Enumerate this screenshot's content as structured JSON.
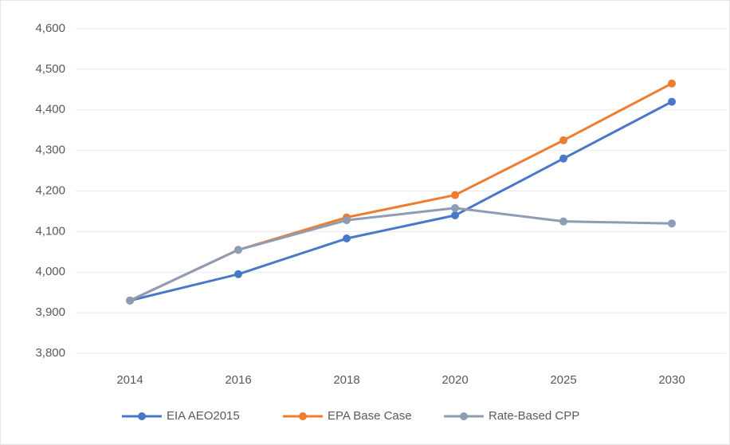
{
  "chart_data": {
    "type": "line",
    "categories": [
      "2014",
      "2016",
      "2018",
      "2020",
      "2025",
      "2030"
    ],
    "series": [
      {
        "name": "EIA AEO2015",
        "color": "#4a78c8",
        "values": [
          3930,
          3995,
          4083,
          4140,
          4280,
          4420
        ]
      },
      {
        "name": "EPA Base Case",
        "color": "#ed7d31",
        "values": [
          3930,
          4055,
          4135,
          4190,
          4325,
          4465
        ]
      },
      {
        "name": "Rate-Based CPP",
        "color": "#8e9db5",
        "values": [
          3930,
          4055,
          4128,
          4158,
          4125,
          4120
        ]
      }
    ],
    "ylim": [
      3800,
      4600
    ],
    "yticks": [
      {
        "value": 3800,
        "label": "3,800"
      },
      {
        "value": 3900,
        "label": "3,900"
      },
      {
        "value": 4000,
        "label": "4,000"
      },
      {
        "value": 4100,
        "label": "4,100"
      },
      {
        "value": 4200,
        "label": "4,200"
      },
      {
        "value": 4300,
        "label": "4,300"
      },
      {
        "value": 4400,
        "label": "4,400"
      },
      {
        "value": 4500,
        "label": "4,500"
      },
      {
        "value": 4600,
        "label": "4,600"
      }
    ],
    "grid": true,
    "legend": "bottom"
  }
}
